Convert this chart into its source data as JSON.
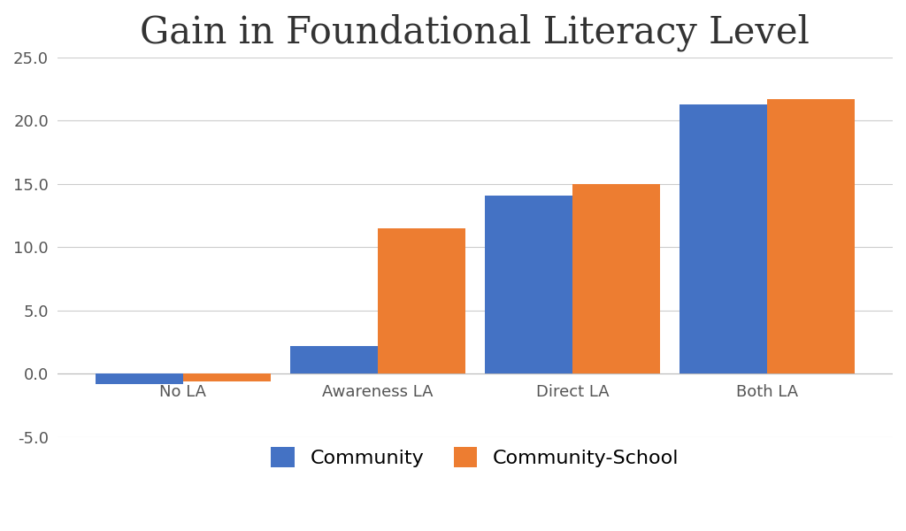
{
  "title": "Gain in Foundational Literacy Level",
  "categories": [
    "No LA",
    "Awareness LA",
    "Direct LA",
    "Both LA"
  ],
  "community_values": [
    -0.8,
    2.2,
    14.1,
    21.3
  ],
  "community_school_values": [
    -0.6,
    11.5,
    15.0,
    21.7
  ],
  "community_color": "#4472C4",
  "community_school_color": "#ED7D31",
  "ylim": [
    -5.0,
    25.0
  ],
  "yticks": [
    -5.0,
    0.0,
    5.0,
    10.0,
    15.0,
    20.0,
    25.0
  ],
  "legend_labels": [
    "Community",
    "Community-School"
  ],
  "bar_width": 0.45,
  "title_fontsize": 30,
  "tick_fontsize": 13,
  "legend_fontsize": 16,
  "background_color": "#FFFFFF",
  "grid_color": "#CCCCCC"
}
